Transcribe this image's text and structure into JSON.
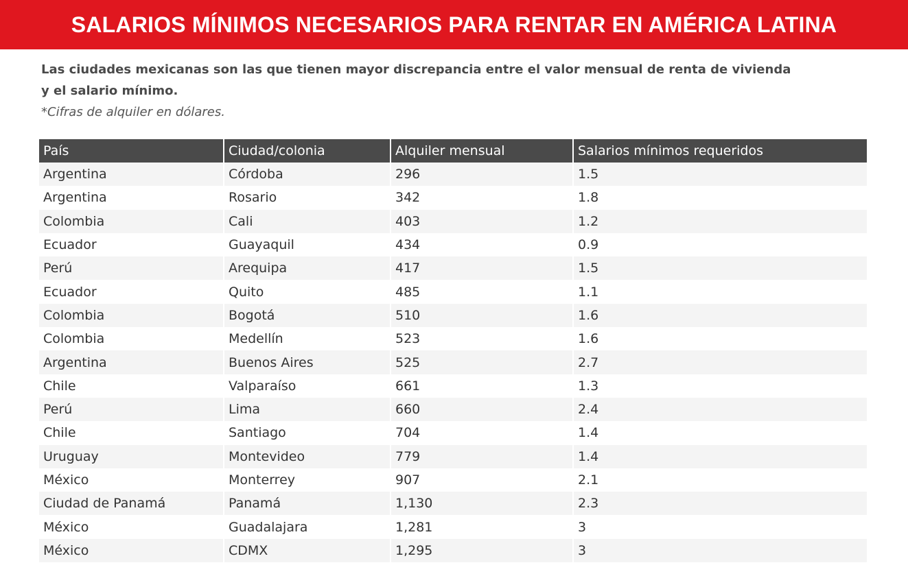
{
  "banner": {
    "title": "SALARIOS MÍNIMOS NECESARIOS PARA RENTAR EN AMÉRICA LATINA"
  },
  "intro": {
    "text": "Las ciudades mexicanas son las que tienen mayor discrepancia entre el valor mensual de renta de vivienda y el salario mínimo.",
    "note": "*Cifras de alquiler en dólares."
  },
  "colors": {
    "banner_red": "#e0171f",
    "header_gray": "#4a4a4a",
    "stripe_gray": "#f4f4f4"
  },
  "table": {
    "headers": [
      "País",
      "Ciudad/colonia",
      "Alquiler mensual",
      "Salarios mínimos requeridos"
    ],
    "rows": [
      [
        "Argentina",
        "Córdoba",
        "296",
        "1.5"
      ],
      [
        "Argentina",
        "Rosario",
        "342",
        "1.8"
      ],
      [
        "Colombia",
        "Cali",
        "403",
        "1.2"
      ],
      [
        "Ecuador",
        "Guayaquil",
        "434",
        "0.9"
      ],
      [
        "Perú",
        "Arequipa",
        "417",
        "1.5"
      ],
      [
        "Ecuador",
        "Quito",
        "485",
        "1.1"
      ],
      [
        "Colombia",
        "Bogotá",
        "510",
        "1.6"
      ],
      [
        "Colombia",
        "Medellín",
        "523",
        "1.6"
      ],
      [
        "Argentina",
        "Buenos Aires",
        "525",
        "2.7"
      ],
      [
        "Chile",
        "Valparaíso",
        "661",
        "1.3"
      ],
      [
        "Perú",
        "Lima",
        "660",
        "2.4"
      ],
      [
        "Chile",
        "Santiago",
        "704",
        "1.4"
      ],
      [
        "Uruguay",
        "Montevideo",
        "779",
        "1.4"
      ],
      [
        "México",
        "Monterrey",
        "907",
        "2.1"
      ],
      [
        "Ciudad de Panamá",
        "Panamá",
        "1,130",
        "2.3"
      ],
      [
        "México",
        "Guadalajara",
        "1,281",
        "3"
      ],
      [
        "México",
        "CDMX",
        "1,295",
        "3"
      ]
    ]
  }
}
